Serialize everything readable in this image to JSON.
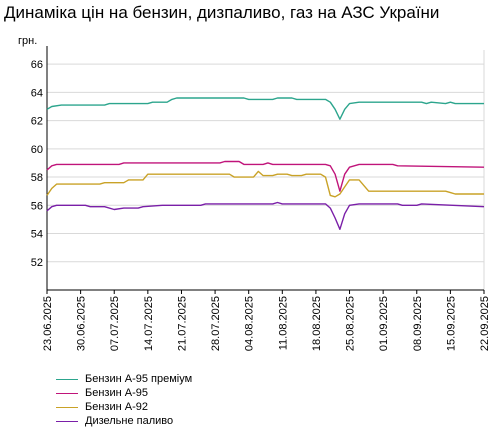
{
  "chart_data": {
    "type": "line",
    "title": "Динаміка цін на бензин, дизпаливо, газ на АЗС України",
    "ylabel": "грн.",
    "ylim": [
      50,
      67
    ],
    "yticks": [
      52,
      54,
      56,
      58,
      60,
      62,
      64,
      66
    ],
    "x_start": "2025-06-23",
    "x_end": "2025-09-22",
    "x_tick_labels": [
      "23.06.2025",
      "30.06.2025",
      "07.07.2025",
      "14.07.2025",
      "21.07.2025",
      "28.07.2025",
      "04.08.2025",
      "11.08.2025",
      "18.08.2025",
      "25.08.2025",
      "01.09.2025",
      "08.09.2025",
      "15.09.2025",
      "22.09.2025"
    ],
    "grid": true,
    "legend_position": "bottom-left",
    "series": [
      {
        "name": "Бензин А-95 преміум",
        "color": "#2ca58d",
        "points": [
          [
            "2025-06-23",
            62.8
          ],
          [
            "2025-06-24",
            63.0
          ],
          [
            "2025-06-26",
            63.1
          ],
          [
            "2025-07-05",
            63.1
          ],
          [
            "2025-07-06",
            63.2
          ],
          [
            "2025-07-14",
            63.2
          ],
          [
            "2025-07-15",
            63.3
          ],
          [
            "2025-07-18",
            63.3
          ],
          [
            "2025-07-19",
            63.5
          ],
          [
            "2025-07-20",
            63.6
          ],
          [
            "2025-08-03",
            63.6
          ],
          [
            "2025-08-04",
            63.5
          ],
          [
            "2025-08-09",
            63.5
          ],
          [
            "2025-08-10",
            63.6
          ],
          [
            "2025-08-13",
            63.6
          ],
          [
            "2025-08-14",
            63.5
          ],
          [
            "2025-08-20",
            63.5
          ],
          [
            "2025-08-21",
            63.3
          ],
          [
            "2025-08-22",
            62.8
          ],
          [
            "2025-08-23",
            62.1
          ],
          [
            "2025-08-24",
            62.8
          ],
          [
            "2025-08-25",
            63.2
          ],
          [
            "2025-08-27",
            63.3
          ],
          [
            "2025-09-09",
            63.3
          ],
          [
            "2025-09-10",
            63.2
          ],
          [
            "2025-09-11",
            63.3
          ],
          [
            "2025-09-14",
            63.2
          ],
          [
            "2025-09-15",
            63.3
          ],
          [
            "2025-09-16",
            63.2
          ],
          [
            "2025-09-22",
            63.2
          ]
        ]
      },
      {
        "name": "Бензин А-95",
        "color": "#c0147a",
        "points": [
          [
            "2025-06-23",
            58.5
          ],
          [
            "2025-06-24",
            58.8
          ],
          [
            "2025-06-25",
            58.9
          ],
          [
            "2025-07-08",
            58.9
          ],
          [
            "2025-07-09",
            59.0
          ],
          [
            "2025-07-29",
            59.0
          ],
          [
            "2025-07-30",
            59.1
          ],
          [
            "2025-08-02",
            59.1
          ],
          [
            "2025-08-03",
            58.9
          ],
          [
            "2025-08-07",
            58.9
          ],
          [
            "2025-08-08",
            59.0
          ],
          [
            "2025-08-09",
            58.9
          ],
          [
            "2025-08-20",
            58.9
          ],
          [
            "2025-08-21",
            58.8
          ],
          [
            "2025-08-22",
            58.2
          ],
          [
            "2025-08-23",
            57.0
          ],
          [
            "2025-08-24",
            58.2
          ],
          [
            "2025-08-25",
            58.7
          ],
          [
            "2025-08-27",
            58.9
          ],
          [
            "2025-09-03",
            58.9
          ],
          [
            "2025-09-04",
            58.8
          ],
          [
            "2025-09-22",
            58.7
          ]
        ]
      },
      {
        "name": "Бензин А-92",
        "color": "#c9a227",
        "points": [
          [
            "2025-06-23",
            56.7
          ],
          [
            "2025-06-24",
            57.2
          ],
          [
            "2025-06-25",
            57.5
          ],
          [
            "2025-07-04",
            57.5
          ],
          [
            "2025-07-05",
            57.6
          ],
          [
            "2025-07-09",
            57.6
          ],
          [
            "2025-07-10",
            57.8
          ],
          [
            "2025-07-13",
            57.8
          ],
          [
            "2025-07-14",
            58.2
          ],
          [
            "2025-07-31",
            58.2
          ],
          [
            "2025-08-01",
            58.0
          ],
          [
            "2025-08-05",
            58.0
          ],
          [
            "2025-08-06",
            58.4
          ],
          [
            "2025-08-07",
            58.1
          ],
          [
            "2025-08-09",
            58.1
          ],
          [
            "2025-08-10",
            58.2
          ],
          [
            "2025-08-12",
            58.2
          ],
          [
            "2025-08-13",
            58.1
          ],
          [
            "2025-08-15",
            58.1
          ],
          [
            "2025-08-16",
            58.2
          ],
          [
            "2025-08-19",
            58.2
          ],
          [
            "2025-08-20",
            58.0
          ],
          [
            "2025-08-21",
            56.7
          ],
          [
            "2025-08-22",
            56.6
          ],
          [
            "2025-08-23",
            56.8
          ],
          [
            "2025-08-24",
            57.3
          ],
          [
            "2025-08-25",
            57.8
          ],
          [
            "2025-08-27",
            57.8
          ],
          [
            "2025-08-29",
            57.0
          ],
          [
            "2025-09-14",
            57.0
          ],
          [
            "2025-09-15",
            56.9
          ],
          [
            "2025-09-16",
            56.8
          ],
          [
            "2025-09-22",
            56.8
          ]
        ]
      },
      {
        "name": "Дизельне паливо",
        "color": "#7a1fa8",
        "points": [
          [
            "2025-06-23",
            55.6
          ],
          [
            "2025-06-24",
            55.9
          ],
          [
            "2025-06-25",
            56.0
          ],
          [
            "2025-07-01",
            56.0
          ],
          [
            "2025-07-02",
            55.9
          ],
          [
            "2025-07-05",
            55.9
          ],
          [
            "2025-07-07",
            55.7
          ],
          [
            "2025-07-09",
            55.8
          ],
          [
            "2025-07-12",
            55.8
          ],
          [
            "2025-07-13",
            55.9
          ],
          [
            "2025-07-17",
            56.0
          ],
          [
            "2025-07-25",
            56.0
          ],
          [
            "2025-07-26",
            56.1
          ],
          [
            "2025-08-09",
            56.1
          ],
          [
            "2025-08-10",
            56.2
          ],
          [
            "2025-08-11",
            56.1
          ],
          [
            "2025-08-20",
            56.1
          ],
          [
            "2025-08-21",
            55.8
          ],
          [
            "2025-08-22",
            55.1
          ],
          [
            "2025-08-23",
            54.3
          ],
          [
            "2025-08-24",
            55.4
          ],
          [
            "2025-08-25",
            56.0
          ],
          [
            "2025-08-27",
            56.1
          ],
          [
            "2025-09-04",
            56.1
          ],
          [
            "2025-09-05",
            56.0
          ],
          [
            "2025-09-08",
            56.0
          ],
          [
            "2025-09-09",
            56.1
          ],
          [
            "2025-09-22",
            55.9
          ]
        ]
      }
    ]
  }
}
